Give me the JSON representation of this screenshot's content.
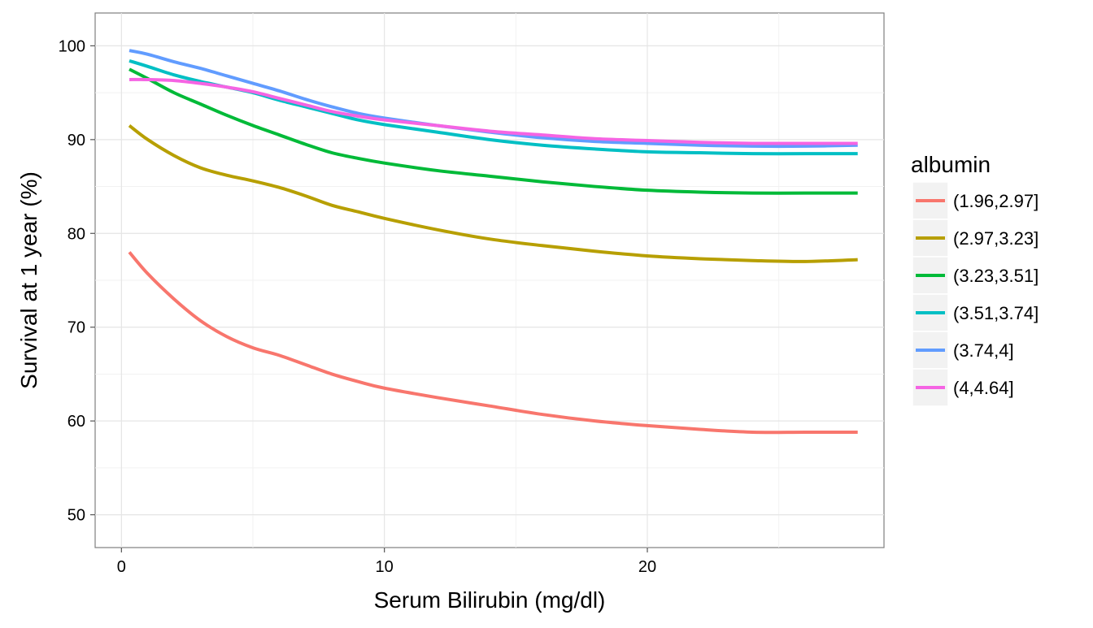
{
  "chart_data": {
    "type": "line",
    "title": "",
    "xlabel": "Serum Bilirubin (mg/dl)",
    "ylabel": "Survival at 1 year (%)",
    "xlim": [
      -1,
      29
    ],
    "ylim": [
      46.5,
      103.5
    ],
    "x_ticks": [
      0,
      10,
      20
    ],
    "y_ticks": [
      50,
      60,
      70,
      80,
      90,
      100
    ],
    "grid": true,
    "legend": {
      "title": "albumin",
      "position": "right"
    },
    "series": [
      {
        "name": "(1.96,2.97]",
        "color": "#F8766D",
        "x": [
          0.3,
          1,
          2,
          3,
          4,
          5,
          6,
          7,
          8,
          9,
          10,
          12,
          14,
          16,
          18,
          20,
          22,
          24,
          26,
          28
        ],
        "values": [
          78.0,
          75.7,
          73.0,
          70.7,
          69.0,
          67.8,
          67.0,
          66.0,
          65.0,
          64.2,
          63.5,
          62.5,
          61.6,
          60.7,
          60.0,
          59.5,
          59.1,
          58.8,
          58.8,
          58.8
        ]
      },
      {
        "name": "(2.97,3.23]",
        "color": "#B79F00",
        "x": [
          0.3,
          1,
          2,
          3,
          4,
          5,
          6,
          7,
          8,
          9,
          10,
          12,
          14,
          16,
          18,
          20,
          22,
          24,
          26,
          28
        ],
        "values": [
          91.5,
          90.0,
          88.3,
          87.0,
          86.2,
          85.6,
          84.9,
          84.0,
          83.0,
          82.3,
          81.6,
          80.4,
          79.4,
          78.7,
          78.1,
          77.6,
          77.3,
          77.1,
          77.0,
          77.2
        ]
      },
      {
        "name": "(3.23,3.51]",
        "color": "#00BA38",
        "x": [
          0.3,
          1,
          2,
          3,
          4,
          5,
          6,
          7,
          8,
          9,
          10,
          12,
          14,
          16,
          18,
          20,
          22,
          24,
          26,
          28
        ],
        "values": [
          97.5,
          96.5,
          95.0,
          93.8,
          92.6,
          91.5,
          90.5,
          89.5,
          88.6,
          88.0,
          87.5,
          86.7,
          86.1,
          85.5,
          85.0,
          84.6,
          84.4,
          84.3,
          84.3,
          84.3
        ]
      },
      {
        "name": "(3.51,3.74]",
        "color": "#00BFC4",
        "x": [
          0.3,
          1,
          2,
          3,
          4,
          5,
          6,
          7,
          8,
          9,
          10,
          12,
          14,
          16,
          18,
          20,
          22,
          24,
          26,
          28
        ],
        "values": [
          98.4,
          97.8,
          96.9,
          96.2,
          95.6,
          95.0,
          94.2,
          93.5,
          92.8,
          92.1,
          91.6,
          90.8,
          90.0,
          89.4,
          89.0,
          88.7,
          88.6,
          88.5,
          88.5,
          88.5
        ]
      },
      {
        "name": "(3.74,4]",
        "color": "#619CFF",
        "x": [
          0.3,
          1,
          2,
          3,
          4,
          5,
          6,
          7,
          8,
          9,
          10,
          12,
          14,
          16,
          18,
          20,
          22,
          24,
          26,
          28
        ],
        "values": [
          99.5,
          99.1,
          98.3,
          97.6,
          96.8,
          96.0,
          95.2,
          94.3,
          93.5,
          92.8,
          92.3,
          91.5,
          90.8,
          90.2,
          89.8,
          89.6,
          89.4,
          89.3,
          89.3,
          89.4
        ]
      },
      {
        "name": "(4,4.64]",
        "color": "#F564E3",
        "x": [
          0.3,
          1,
          2,
          3,
          4,
          5,
          6,
          7,
          8,
          9,
          10,
          12,
          14,
          16,
          18,
          20,
          22,
          24,
          26,
          28
        ],
        "values": [
          96.4,
          96.4,
          96.3,
          96.0,
          95.6,
          95.1,
          94.4,
          93.7,
          93.0,
          92.5,
          92.1,
          91.5,
          90.9,
          90.5,
          90.1,
          89.9,
          89.7,
          89.6,
          89.6,
          89.6
        ]
      }
    ]
  }
}
